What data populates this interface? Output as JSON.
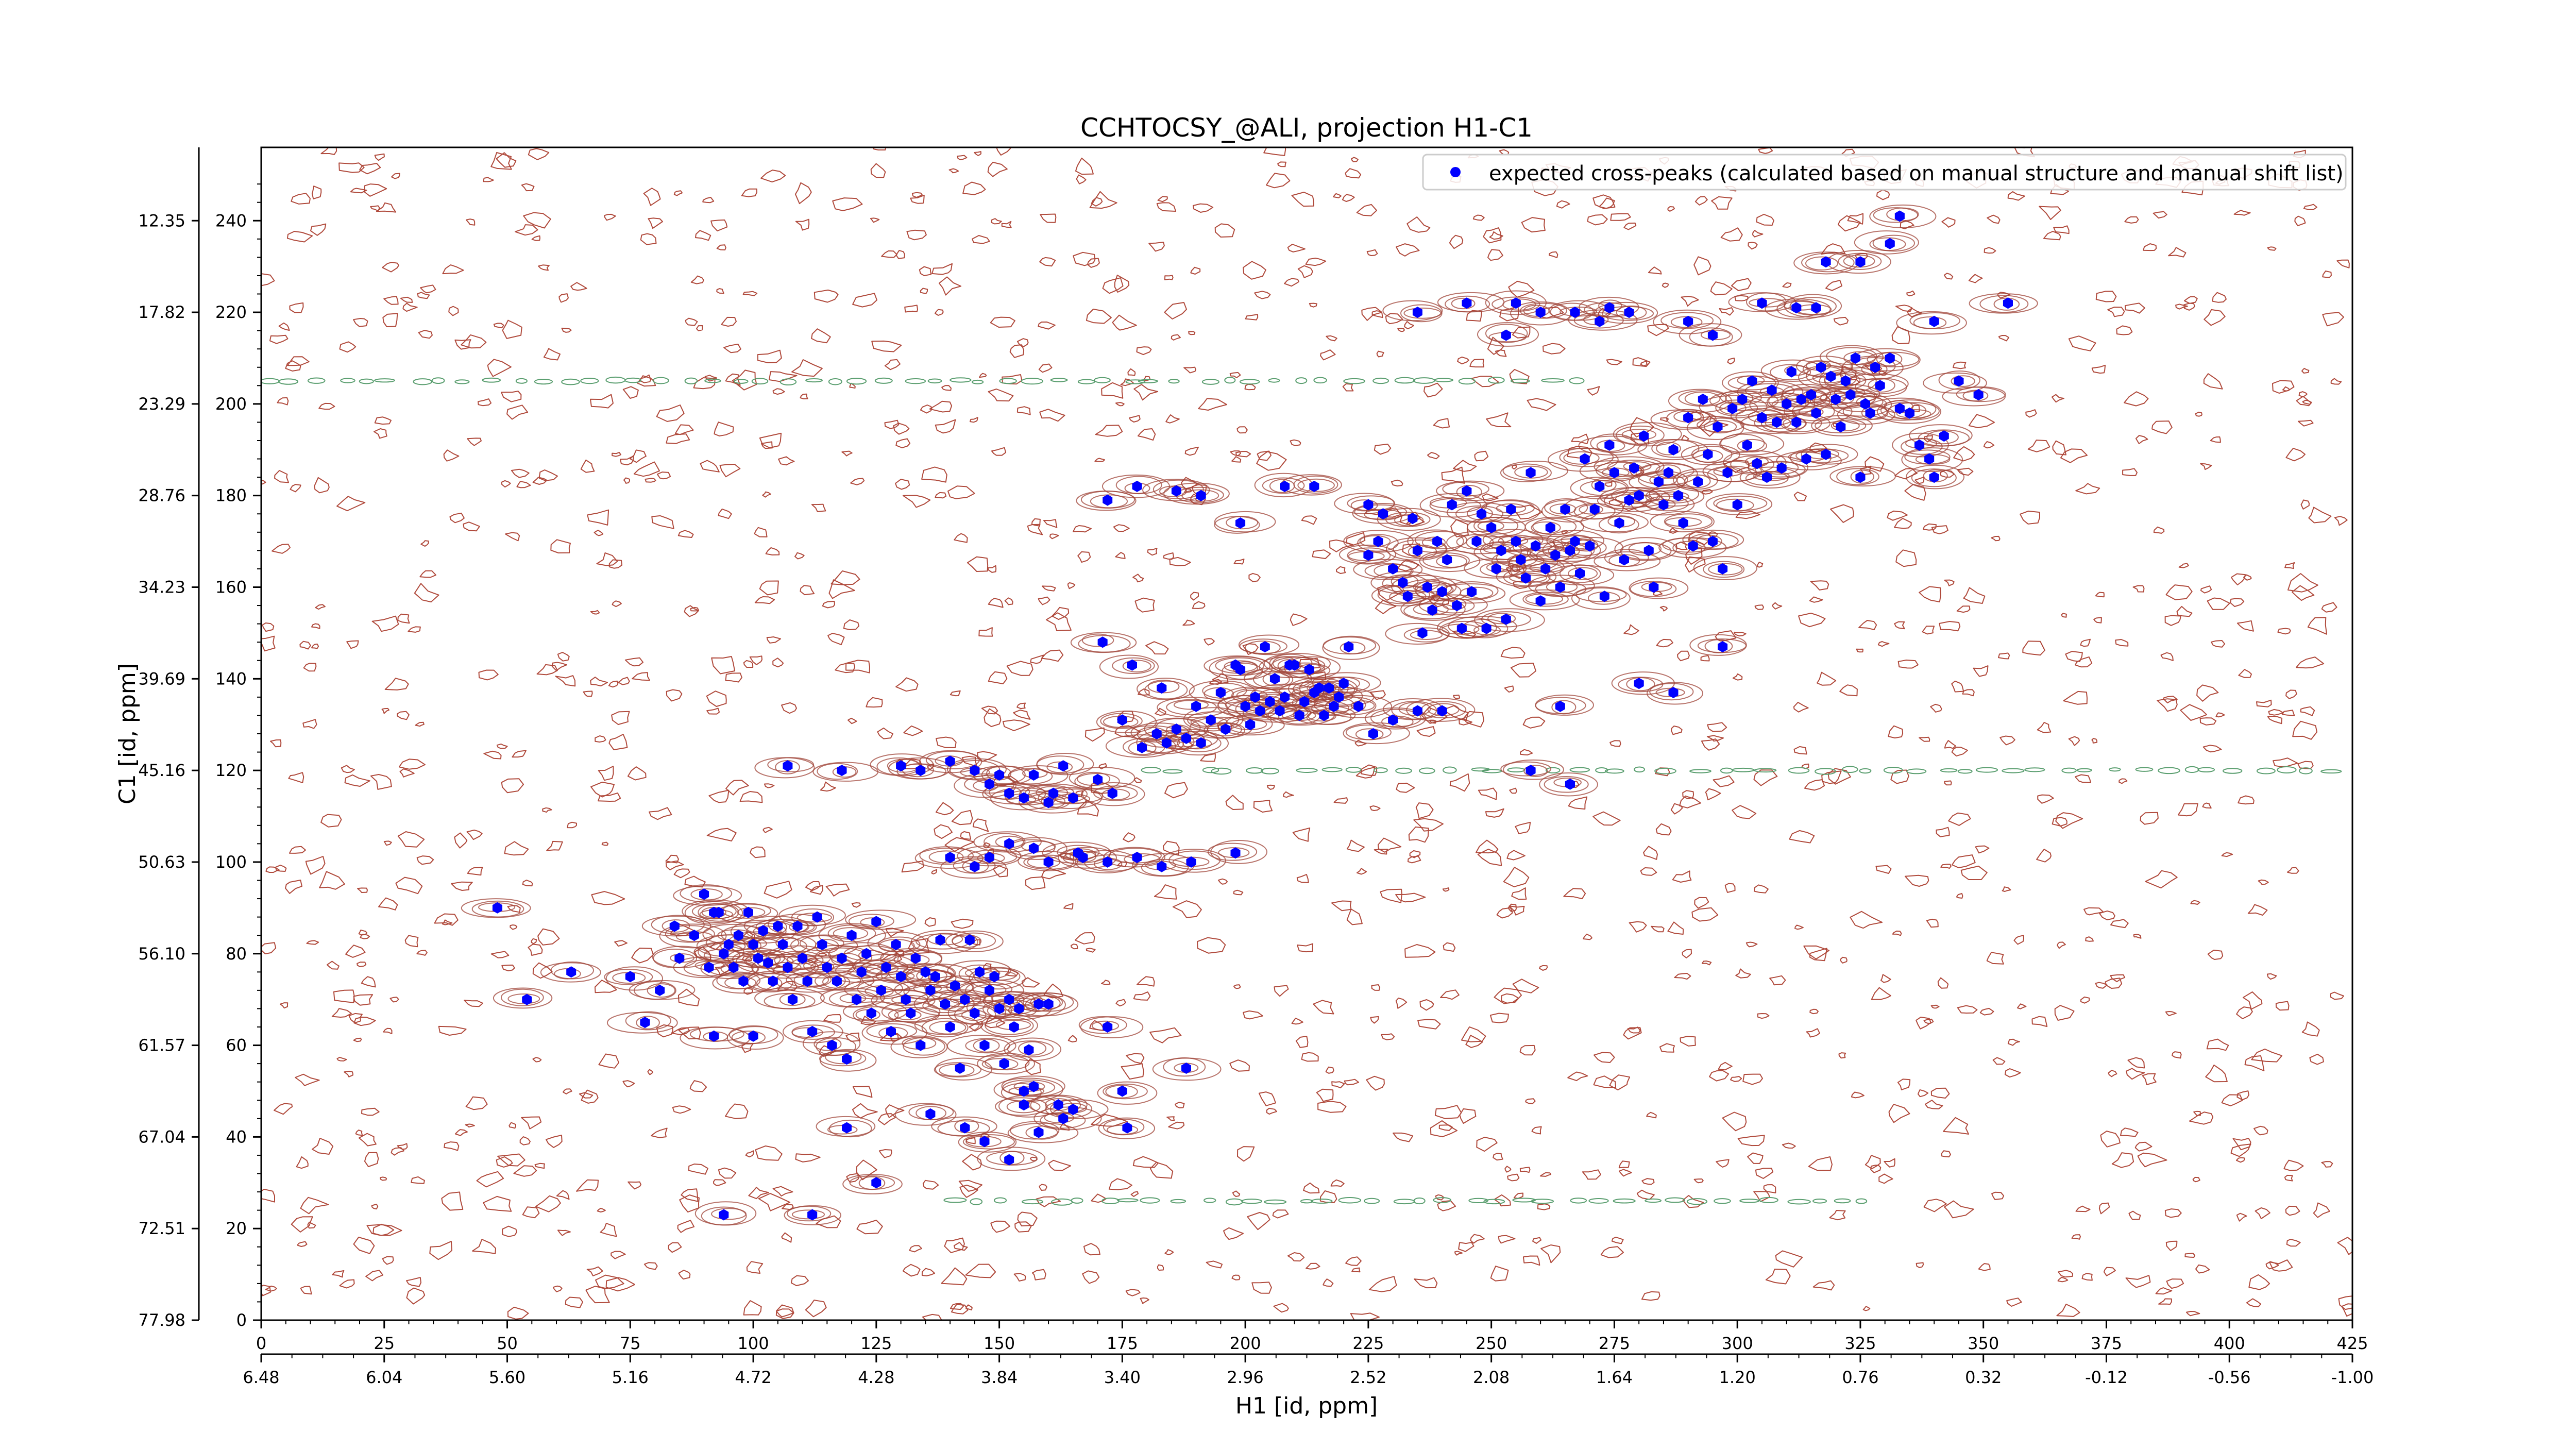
{
  "chart_data": {
    "type": "scatter",
    "title": "CCHTOCSY_@ALI, projection H1-C1",
    "xlabel": "H1 [id, ppm]",
    "ylabel": "C1 [id, ppm]",
    "x_index_range": [
      0,
      425
    ],
    "y_index_range": [
      0,
      256
    ],
    "x_ppm_range": [
      6.48,
      -1.0
    ],
    "y_ppm_range": [
      77.98,
      10.0
    ],
    "x_ticks_index": [
      "0",
      "25",
      "50",
      "75",
      "100",
      "125",
      "150",
      "175",
      "200",
      "225",
      "250",
      "275",
      "300",
      "325",
      "350",
      "375",
      "400",
      "425"
    ],
    "x_ticks_ppm": [
      "6.48",
      "6.04",
      "5.60",
      "5.16",
      "4.72",
      "4.28",
      "3.84",
      "3.40",
      "2.96",
      "2.52",
      "2.08",
      "1.64",
      "1.20",
      "0.76",
      "0.32",
      "-0.12",
      "-0.56",
      "-1.00"
    ],
    "y_ticks_index": [
      "0",
      "20",
      "40",
      "60",
      "80",
      "100",
      "120",
      "140",
      "160",
      "180",
      "200",
      "220",
      "240"
    ],
    "y_ticks_ppm": [
      "77.98",
      "72.51",
      "67.04",
      "61.57",
      "56.10",
      "50.63",
      "45.16",
      "39.69",
      "34.23",
      "28.76",
      "23.29",
      "17.82",
      "12.35"
    ],
    "grid": false,
    "legend_position": "top-right",
    "series": [
      {
        "name": "expected cross-peaks (calculated based on manual structure and manual shift list)",
        "color": "#0000ff",
        "marker": "hexagon",
        "points": [
          [
            48,
            90
          ],
          [
            54,
            70
          ],
          [
            63,
            76
          ],
          [
            75,
            75
          ],
          [
            78,
            65
          ],
          [
            81,
            72
          ],
          [
            84,
            86
          ],
          [
            85,
            79
          ],
          [
            88,
            84
          ],
          [
            90,
            93
          ],
          [
            91,
            77
          ],
          [
            92,
            89
          ],
          [
            92,
            62
          ],
          [
            93,
            89
          ],
          [
            94,
            80
          ],
          [
            95,
            82
          ],
          [
            96,
            77
          ],
          [
            97,
            84
          ],
          [
            98,
            74
          ],
          [
            99,
            89
          ],
          [
            100,
            82
          ],
          [
            100,
            62
          ],
          [
            101,
            79
          ],
          [
            102,
            85
          ],
          [
            103,
            78
          ],
          [
            104,
            74
          ],
          [
            105,
            86
          ],
          [
            106,
            82
          ],
          [
            107,
            77
          ],
          [
            108,
            70
          ],
          [
            109,
            86
          ],
          [
            110,
            79
          ],
          [
            111,
            74
          ],
          [
            112,
            63
          ],
          [
            113,
            88
          ],
          [
            114,
            82
          ],
          [
            115,
            77
          ],
          [
            116,
            60
          ],
          [
            117,
            74
          ],
          [
            118,
            79
          ],
          [
            119,
            57
          ],
          [
            120,
            84
          ],
          [
            121,
            70
          ],
          [
            122,
            76
          ],
          [
            123,
            80
          ],
          [
            124,
            67
          ],
          [
            125,
            87
          ],
          [
            126,
            72
          ],
          [
            127,
            77
          ],
          [
            128,
            63
          ],
          [
            129,
            82
          ],
          [
            130,
            75
          ],
          [
            131,
            70
          ],
          [
            132,
            67
          ],
          [
            133,
            79
          ],
          [
            134,
            60
          ],
          [
            135,
            76
          ],
          [
            136,
            72
          ],
          [
            137,
            75
          ],
          [
            138,
            83
          ],
          [
            139,
            69
          ],
          [
            140,
            64
          ],
          [
            141,
            73
          ],
          [
            142,
            55
          ],
          [
            143,
            70
          ],
          [
            144,
            83
          ],
          [
            145,
            67
          ],
          [
            146,
            76
          ],
          [
            147,
            60
          ],
          [
            148,
            72
          ],
          [
            149,
            75
          ],
          [
            150,
            68
          ],
          [
            151,
            56
          ],
          [
            152,
            70
          ],
          [
            153,
            64
          ],
          [
            154,
            68
          ],
          [
            155,
            50
          ],
          [
            156,
            59
          ],
          [
            157,
            51
          ],
          [
            158,
            69
          ],
          [
            160,
            69
          ],
          [
            163,
            44
          ],
          [
            165,
            46
          ],
          [
            172,
            64
          ],
          [
            175,
            50
          ],
          [
            176,
            42
          ],
          [
            188,
            55
          ],
          [
            94,
            23
          ],
          [
            112,
            23
          ],
          [
            119,
            42
          ],
          [
            125,
            30
          ],
          [
            136,
            45
          ],
          [
            143,
            42
          ],
          [
            147,
            39
          ],
          [
            152,
            35
          ],
          [
            155,
            47
          ],
          [
            158,
            41
          ],
          [
            162,
            47
          ],
          [
            107,
            121
          ],
          [
            118,
            120
          ],
          [
            130,
            121
          ],
          [
            134,
            120
          ],
          [
            140,
            122
          ],
          [
            145,
            120
          ],
          [
            148,
            117
          ],
          [
            150,
            119
          ],
          [
            152,
            115
          ],
          [
            155,
            114
          ],
          [
            157,
            119
          ],
          [
            160,
            113
          ],
          [
            161,
            115
          ],
          [
            163,
            121
          ],
          [
            165,
            114
          ],
          [
            166,
            102
          ],
          [
            170,
            118
          ],
          [
            173,
            115
          ],
          [
            140,
            101
          ],
          [
            145,
            99
          ],
          [
            148,
            101
          ],
          [
            152,
            104
          ],
          [
            157,
            103
          ],
          [
            160,
            100
          ],
          [
            167,
            101
          ],
          [
            172,
            100
          ],
          [
            178,
            101
          ],
          [
            183,
            99
          ],
          [
            189,
            100
          ],
          [
            198,
            102
          ],
          [
            171,
            148
          ],
          [
            175,
            131
          ],
          [
            177,
            143
          ],
          [
            179,
            125
          ],
          [
            182,
            128
          ],
          [
            183,
            138
          ],
          [
            184,
            126
          ],
          [
            186,
            129
          ],
          [
            188,
            127
          ],
          [
            190,
            134
          ],
          [
            191,
            126
          ],
          [
            193,
            131
          ],
          [
            195,
            137
          ],
          [
            196,
            129
          ],
          [
            198,
            143
          ],
          [
            199,
            142
          ],
          [
            200,
            134
          ],
          [
            201,
            130
          ],
          [
            202,
            136
          ],
          [
            203,
            133
          ],
          [
            204,
            147
          ],
          [
            205,
            135
          ],
          [
            206,
            140
          ],
          [
            207,
            133
          ],
          [
            208,
            136
          ],
          [
            209,
            143
          ],
          [
            210,
            143
          ],
          [
            211,
            132
          ],
          [
            212,
            135
          ],
          [
            213,
            142
          ],
          [
            214,
            137
          ],
          [
            215,
            138
          ],
          [
            216,
            132
          ],
          [
            217,
            138
          ],
          [
            218,
            134
          ],
          [
            219,
            136
          ],
          [
            220,
            139
          ],
          [
            221,
            147
          ],
          [
            223,
            134
          ],
          [
            226,
            128
          ],
          [
            230,
            131
          ],
          [
            235,
            133
          ],
          [
            240,
            133
          ],
          [
            172,
            179
          ],
          [
            178,
            182
          ],
          [
            186,
            181
          ],
          [
            191,
            180
          ],
          [
            199,
            174
          ],
          [
            208,
            182
          ],
          [
            214,
            182
          ],
          [
            225,
            178
          ],
          [
            225,
            167
          ],
          [
            227,
            170
          ],
          [
            228,
            176
          ],
          [
            230,
            164
          ],
          [
            232,
            161
          ],
          [
            233,
            158
          ],
          [
            234,
            175
          ],
          [
            235,
            168
          ],
          [
            236,
            150
          ],
          [
            237,
            160
          ],
          [
            238,
            155
          ],
          [
            239,
            170
          ],
          [
            240,
            159
          ],
          [
            241,
            166
          ],
          [
            242,
            178
          ],
          [
            243,
            156
          ],
          [
            244,
            151
          ],
          [
            245,
            181
          ],
          [
            246,
            159
          ],
          [
            247,
            170
          ],
          [
            248,
            176
          ],
          [
            249,
            151
          ],
          [
            250,
            173
          ],
          [
            251,
            164
          ],
          [
            252,
            168
          ],
          [
            253,
            153
          ],
          [
            254,
            177
          ],
          [
            255,
            170
          ],
          [
            256,
            166
          ],
          [
            257,
            162
          ],
          [
            258,
            185
          ],
          [
            259,
            169
          ],
          [
            260,
            157
          ],
          [
            261,
            164
          ],
          [
            262,
            173
          ],
          [
            263,
            167
          ],
          [
            264,
            160
          ],
          [
            265,
            177
          ],
          [
            266,
            168
          ],
          [
            267,
            170
          ],
          [
            268,
            163
          ],
          [
            269,
            188
          ],
          [
            270,
            169
          ],
          [
            271,
            177
          ],
          [
            272,
            182
          ],
          [
            273,
            158
          ],
          [
            274,
            191
          ],
          [
            275,
            185
          ],
          [
            276,
            174
          ],
          [
            277,
            166
          ],
          [
            278,
            179
          ],
          [
            279,
            186
          ],
          [
            280,
            180
          ],
          [
            281,
            193
          ],
          [
            282,
            168
          ],
          [
            283,
            160
          ],
          [
            284,
            183
          ],
          [
            285,
            178
          ],
          [
            286,
            185
          ],
          [
            287,
            190
          ],
          [
            288,
            180
          ],
          [
            289,
            174
          ],
          [
            290,
            197
          ],
          [
            291,
            169
          ],
          [
            292,
            183
          ],
          [
            293,
            201
          ],
          [
            294,
            189
          ],
          [
            295,
            170
          ],
          [
            296,
            195
          ],
          [
            297,
            164
          ],
          [
            298,
            185
          ],
          [
            299,
            199
          ],
          [
            300,
            178
          ],
          [
            301,
            201
          ],
          [
            302,
            191
          ],
          [
            303,
            205
          ],
          [
            304,
            187
          ],
          [
            305,
            197
          ],
          [
            306,
            184
          ],
          [
            307,
            203
          ],
          [
            308,
            196
          ],
          [
            309,
            186
          ],
          [
            310,
            200
          ],
          [
            311,
            207
          ],
          [
            312,
            196
          ],
          [
            313,
            201
          ],
          [
            314,
            188
          ],
          [
            315,
            202
          ],
          [
            316,
            198
          ],
          [
            317,
            208
          ],
          [
            318,
            189
          ],
          [
            319,
            206
          ],
          [
            320,
            201
          ],
          [
            321,
            195
          ],
          [
            322,
            205
          ],
          [
            323,
            202
          ],
          [
            324,
            210
          ],
          [
            325,
            184
          ],
          [
            326,
            200
          ],
          [
            327,
            198
          ],
          [
            328,
            208
          ],
          [
            329,
            204
          ],
          [
            331,
            210
          ],
          [
            333,
            199
          ],
          [
            335,
            198
          ],
          [
            337,
            191
          ],
          [
            339,
            188
          ],
          [
            340,
            184
          ],
          [
            342,
            193
          ],
          [
            345,
            205
          ],
          [
            349,
            202
          ],
          [
            253,
            215
          ],
          [
            260,
            220
          ],
          [
            267,
            220
          ],
          [
            272,
            218
          ],
          [
            274,
            221
          ],
          [
            278,
            220
          ],
          [
            290,
            218
          ],
          [
            295,
            215
          ],
          [
            305,
            222
          ],
          [
            312,
            221
          ],
          [
            316,
            221
          ],
          [
            318,
            231
          ],
          [
            325,
            231
          ],
          [
            331,
            235
          ],
          [
            333,
            241
          ],
          [
            340,
            218
          ],
          [
            355,
            222
          ],
          [
            235,
            220
          ],
          [
            245,
            222
          ],
          [
            255,
            222
          ],
          [
            258,
            120
          ],
          [
            264,
            134
          ],
          [
            266,
            117
          ],
          [
            280,
            139
          ],
          [
            287,
            137
          ],
          [
            297,
            147
          ]
        ]
      }
    ]
  }
}
